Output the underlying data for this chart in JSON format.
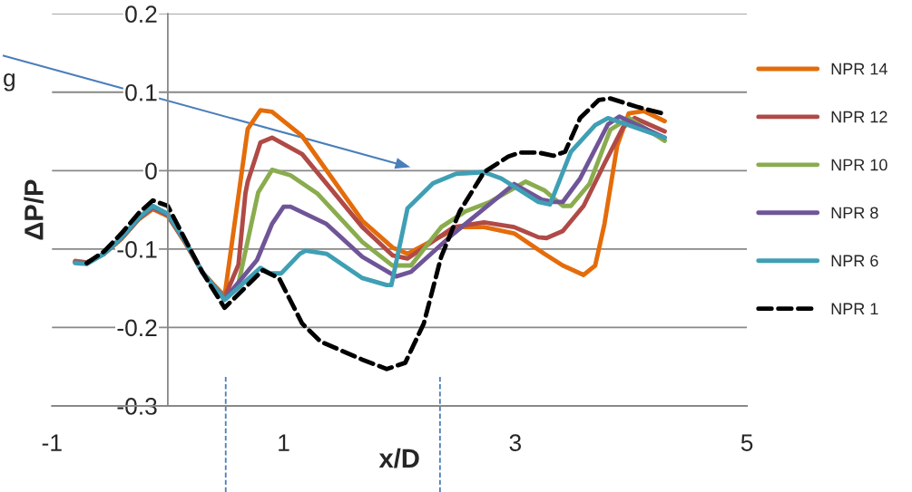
{
  "chart_data": {
    "type": "line",
    "xlabel": "x/D",
    "ylabel": "ΔP/P",
    "xlim": [
      -1,
      5
    ],
    "ylim": [
      -0.3,
      0.2
    ],
    "xticks": [
      -1,
      1,
      3,
      5
    ],
    "yticks": [
      -0.3,
      -0.2,
      -0.1,
      0,
      0.1,
      0.2
    ],
    "grid": "y",
    "legend": "right",
    "annotations": [
      "g"
    ],
    "ref_lines": [
      {
        "axis": "x",
        "value": 0.5,
        "color": "#4a7ebb",
        "line_style": "dashed"
      },
      {
        "axis": "x",
        "value": 2.35,
        "color": "#4a7ebb",
        "line_style": "dashed"
      }
    ],
    "series": [
      {
        "name": "NPR 14",
        "color": "#e46c0a",
        "x": [
          -0.8,
          -0.7,
          -0.55,
          -0.4,
          -0.25,
          -0.13,
          0.0,
          0.15,
          0.3,
          0.49,
          0.69,
          0.8,
          0.9,
          1.16,
          1.68,
          1.94,
          2.07,
          2.26,
          2.52,
          2.73,
          2.99,
          3.25,
          3.41,
          3.59,
          3.69,
          3.77,
          3.88,
          3.98,
          4.11,
          4.29
        ],
        "values": [
          -0.115,
          -0.117,
          -0.106,
          -0.087,
          -0.062,
          -0.049,
          -0.058,
          -0.092,
          -0.13,
          -0.16,
          0.053,
          0.077,
          0.075,
          0.044,
          -0.064,
          -0.098,
          -0.106,
          -0.091,
          -0.072,
          -0.072,
          -0.08,
          -0.106,
          -0.121,
          -0.133,
          -0.121,
          -0.068,
          0.032,
          0.073,
          0.076,
          0.063
        ]
      },
      {
        "name": "NPR 12",
        "color": "#b04a46",
        "x": [
          -0.8,
          -0.7,
          -0.55,
          -0.4,
          -0.25,
          -0.13,
          0.0,
          0.15,
          0.3,
          0.49,
          0.61,
          0.67,
          0.69,
          0.8,
          0.9,
          1.16,
          1.68,
          1.94,
          2.07,
          2.47,
          2.73,
          2.99,
          3.2,
          3.27,
          3.41,
          3.59,
          3.77,
          3.93,
          4.03,
          4.29
        ],
        "values": [
          -0.116,
          -0.117,
          -0.106,
          -0.086,
          -0.061,
          -0.047,
          -0.057,
          -0.091,
          -0.13,
          -0.162,
          -0.12,
          -0.029,
          -0.014,
          0.036,
          0.042,
          0.021,
          -0.072,
          -0.108,
          -0.112,
          -0.072,
          -0.066,
          -0.072,
          -0.085,
          -0.086,
          -0.077,
          -0.045,
          0.009,
          0.055,
          0.067,
          0.05
        ]
      },
      {
        "name": "NPR 10",
        "color": "#8aac4f",
        "x": [
          -0.8,
          -0.7,
          -0.55,
          -0.4,
          -0.25,
          -0.13,
          0.0,
          0.15,
          0.3,
          0.49,
          0.61,
          0.78,
          0.9,
          1.06,
          1.29,
          1.68,
          1.94,
          2.1,
          2.36,
          2.57,
          2.78,
          3.09,
          3.25,
          3.41,
          3.48,
          3.64,
          3.82,
          3.98,
          4.29
        ],
        "values": [
          -0.117,
          -0.118,
          -0.106,
          -0.086,
          -0.061,
          -0.046,
          -0.056,
          -0.09,
          -0.13,
          -0.163,
          -0.144,
          -0.028,
          0.001,
          -0.006,
          -0.029,
          -0.091,
          -0.121,
          -0.121,
          -0.072,
          -0.052,
          -0.04,
          -0.014,
          -0.025,
          -0.045,
          -0.045,
          -0.017,
          0.052,
          0.067,
          0.038
        ]
      },
      {
        "name": "NPR 8",
        "color": "#6f5597",
        "x": [
          -0.8,
          -0.7,
          -0.55,
          -0.4,
          -0.25,
          -0.13,
          0.0,
          0.15,
          0.3,
          0.49,
          0.77,
          0.9,
          1.0,
          1.06,
          1.37,
          1.68,
          1.97,
          2.1,
          2.47,
          2.99,
          3.23,
          3.33,
          3.41,
          3.56,
          3.8,
          3.9,
          4.29
        ],
        "values": [
          -0.117,
          -0.118,
          -0.106,
          -0.086,
          -0.061,
          -0.046,
          -0.056,
          -0.09,
          -0.13,
          -0.164,
          -0.114,
          -0.068,
          -0.046,
          -0.046,
          -0.068,
          -0.11,
          -0.135,
          -0.129,
          -0.08,
          -0.017,
          -0.037,
          -0.04,
          -0.04,
          -0.01,
          0.059,
          0.069,
          0.042
        ]
      },
      {
        "name": "NPR 6",
        "color": "#3f9fb4",
        "x": [
          -0.8,
          -0.7,
          -0.55,
          -0.4,
          -0.25,
          -0.13,
          0.0,
          0.15,
          0.3,
          0.49,
          0.8,
          0.88,
          0.98,
          1.14,
          1.19,
          1.37,
          1.68,
          1.89,
          1.93,
          2.07,
          2.29,
          2.49,
          2.73,
          2.88,
          3.2,
          3.3,
          3.48,
          3.69,
          3.8,
          4.29
        ],
        "values": [
          -0.118,
          -0.119,
          -0.106,
          -0.085,
          -0.06,
          -0.045,
          -0.055,
          -0.09,
          -0.13,
          -0.165,
          -0.124,
          -0.131,
          -0.131,
          -0.106,
          -0.102,
          -0.106,
          -0.137,
          -0.146,
          -0.146,
          -0.048,
          -0.016,
          -0.004,
          -0.002,
          -0.01,
          -0.04,
          -0.043,
          0.024,
          0.058,
          0.067,
          0.042
        ]
      },
      {
        "name": "NPR 1",
        "color": "#000000",
        "line_style": "dashed",
        "x": [
          -0.7,
          -0.55,
          -0.4,
          -0.25,
          -0.13,
          0.0,
          0.15,
          0.3,
          0.49,
          0.82,
          0.96,
          1.16,
          1.32,
          1.68,
          1.89,
          2.05,
          2.21,
          2.36,
          2.52,
          2.73,
          2.94,
          3.04,
          3.2,
          3.33,
          3.43,
          3.56,
          3.72,
          3.82,
          4.06,
          4.27
        ],
        "values": [
          -0.118,
          -0.103,
          -0.08,
          -0.054,
          -0.038,
          -0.045,
          -0.088,
          -0.13,
          -0.175,
          -0.127,
          -0.137,
          -0.195,
          -0.218,
          -0.241,
          -0.253,
          -0.245,
          -0.195,
          -0.11,
          -0.052,
          -0.002,
          0.018,
          0.023,
          0.023,
          0.019,
          0.024,
          0.067,
          0.09,
          0.092,
          0.081,
          0.073
        ]
      }
    ]
  }
}
